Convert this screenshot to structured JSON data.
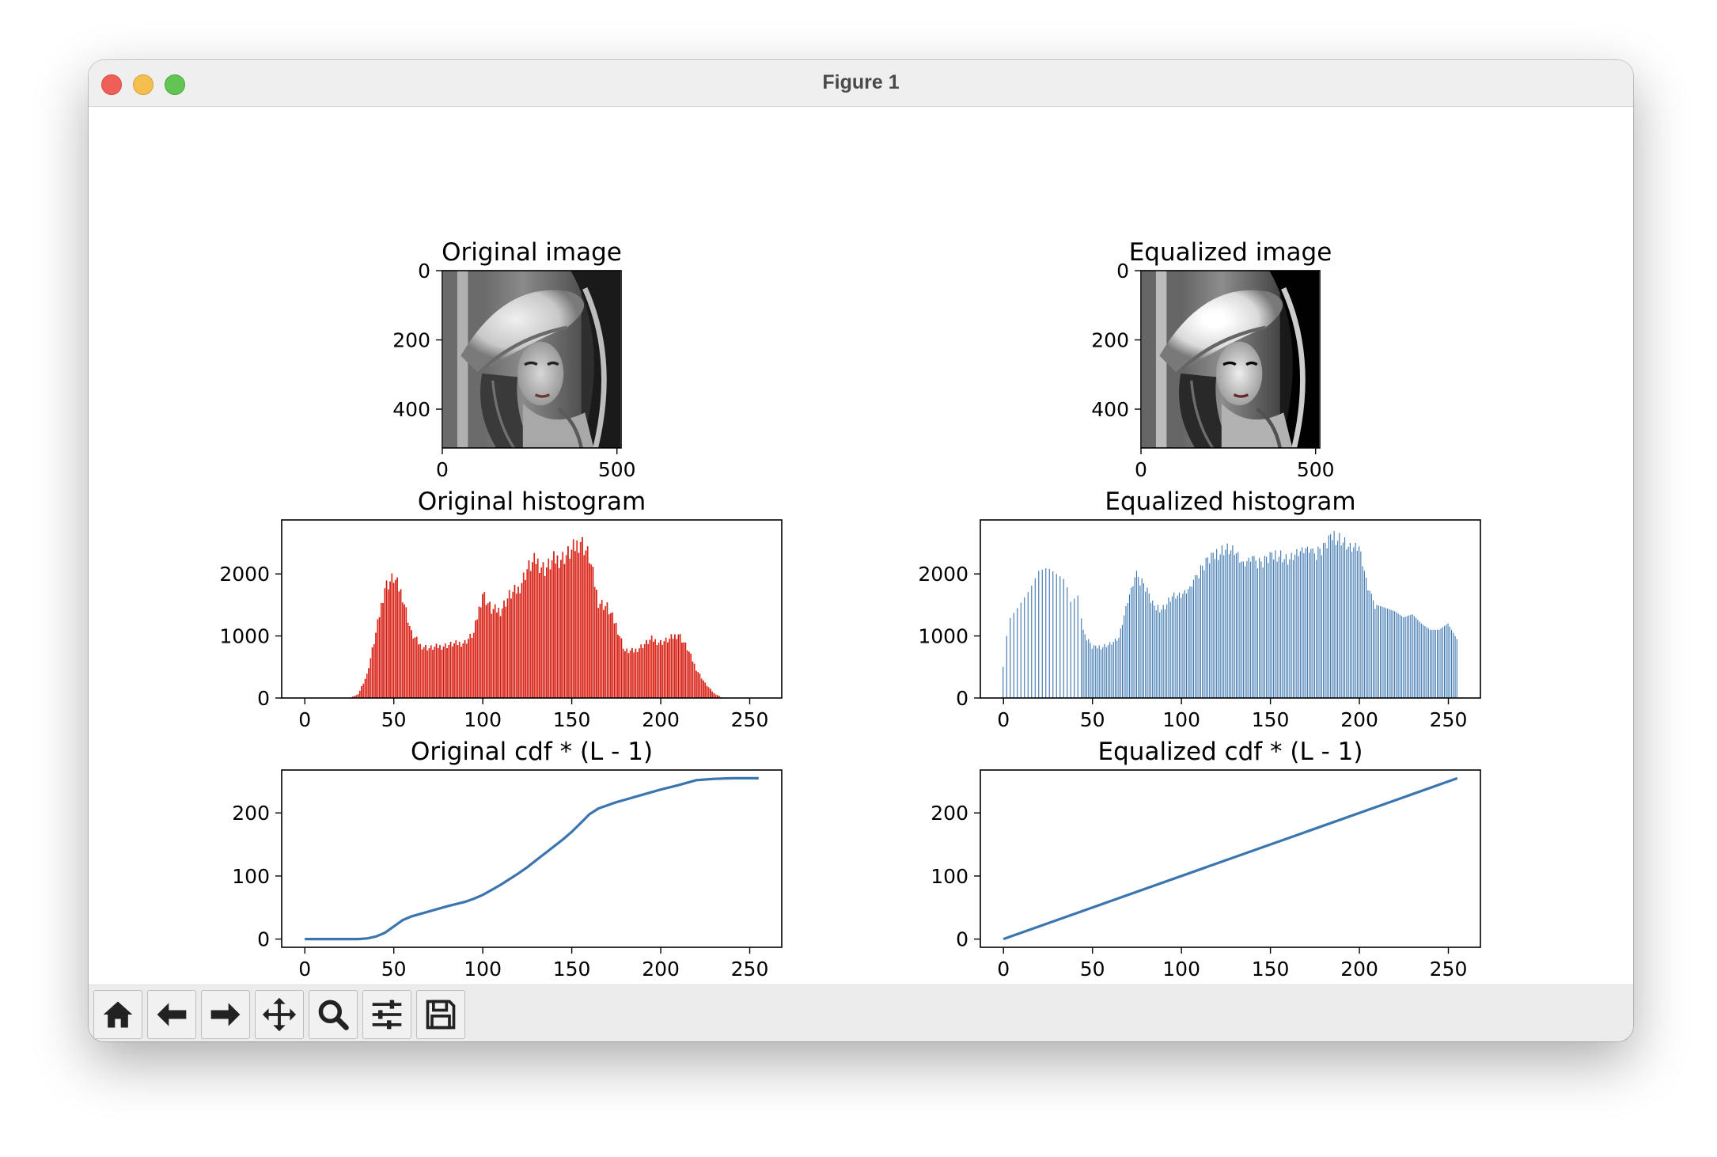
{
  "window": {
    "title": "Figure 1"
  },
  "toolbar": {
    "buttons": [
      {
        "name": "home-button",
        "icon": "home-icon"
      },
      {
        "name": "back-button",
        "icon": "arrow-left-icon"
      },
      {
        "name": "forward-button",
        "icon": "arrow-right-icon"
      },
      {
        "name": "pan-button",
        "icon": "move-icon"
      },
      {
        "name": "zoom-button",
        "icon": "magnifier-icon"
      },
      {
        "name": "configure-subplots-button",
        "icon": "sliders-icon"
      },
      {
        "name": "save-button",
        "icon": "floppy-disk-icon"
      }
    ]
  },
  "colors": {
    "red_hist": "#e8281a",
    "blue": "#3b75af"
  },
  "chart_data": [
    {
      "type": "image",
      "title": "Original image",
      "xticks": [
        0,
        500
      ],
      "yticks": [
        0,
        200,
        400
      ],
      "xlim": [
        0,
        512
      ],
      "ylim": [
        512,
        0
      ]
    },
    {
      "type": "image",
      "title": "Equalized image",
      "xticks": [
        0,
        500
      ],
      "yticks": [
        0,
        200,
        400
      ],
      "xlim": [
        0,
        512
      ],
      "ylim": [
        512,
        0
      ]
    },
    {
      "type": "bar",
      "title": "Original histogram",
      "xlim": [
        -13,
        268
      ],
      "ylim": [
        0,
        2870
      ],
      "xticks": [
        0,
        50,
        100,
        150,
        200,
        250
      ],
      "yticks": [
        0,
        1000,
        2000
      ],
      "peaks": [
        [
          25,
          0
        ],
        [
          30,
          60
        ],
        [
          35,
          400
        ],
        [
          40,
          1100
        ],
        [
          45,
          1900
        ],
        [
          50,
          2050
        ],
        [
          55,
          1750
        ],
        [
          60,
          1100
        ],
        [
          65,
          900
        ],
        [
          70,
          850
        ],
        [
          80,
          900
        ],
        [
          90,
          950
        ],
        [
          95,
          1100
        ],
        [
          100,
          1800
        ],
        [
          105,
          1500
        ],
        [
          110,
          1500
        ],
        [
          115,
          1750
        ],
        [
          120,
          1850
        ],
        [
          125,
          2200
        ],
        [
          130,
          2350
        ],
        [
          135,
          2200
        ],
        [
          140,
          2350
        ],
        [
          145,
          2400
        ],
        [
          150,
          2500
        ],
        [
          155,
          2700
        ],
        [
          160,
          2400
        ],
        [
          165,
          1650
        ],
        [
          170,
          1550
        ],
        [
          175,
          1250
        ],
        [
          180,
          800
        ],
        [
          185,
          800
        ],
        [
          190,
          900
        ],
        [
          195,
          1000
        ],
        [
          200,
          950
        ],
        [
          205,
          1000
        ],
        [
          210,
          1100
        ],
        [
          215,
          850
        ],
        [
          220,
          500
        ],
        [
          225,
          250
        ],
        [
          230,
          80
        ],
        [
          235,
          0
        ]
      ]
    },
    {
      "type": "bar",
      "title": "Equalized histogram",
      "xlim": [
        -13,
        268
      ],
      "ylim": [
        0,
        2870
      ],
      "xticks": [
        0,
        50,
        100,
        150,
        200,
        250
      ],
      "yticks": [
        0,
        1000,
        2000
      ],
      "peaks": [
        [
          0,
          500
        ],
        [
          3,
          1250
        ],
        [
          8,
          1450
        ],
        [
          15,
          1750
        ],
        [
          20,
          2050
        ],
        [
          25,
          2100
        ],
        [
          30,
          2000
        ],
        [
          35,
          1900
        ],
        [
          38,
          1550
        ],
        [
          42,
          1650
        ],
        [
          45,
          1100
        ],
        [
          50,
          850
        ],
        [
          55,
          850
        ],
        [
          60,
          900
        ],
        [
          65,
          1000
        ],
        [
          70,
          1600
        ],
        [
          75,
          2050
        ],
        [
          80,
          1850
        ],
        [
          85,
          1500
        ],
        [
          90,
          1500
        ],
        [
          95,
          1700
        ],
        [
          100,
          1700
        ],
        [
          105,
          1800
        ],
        [
          110,
          2100
        ],
        [
          115,
          2300
        ],
        [
          120,
          2400
        ],
        [
          125,
          2500
        ],
        [
          130,
          2450
        ],
        [
          135,
          2200
        ],
        [
          140,
          2300
        ],
        [
          145,
          2250
        ],
        [
          150,
          2350
        ],
        [
          155,
          2400
        ],
        [
          160,
          2300
        ],
        [
          165,
          2400
        ],
        [
          170,
          2450
        ],
        [
          175,
          2400
        ],
        [
          180,
          2500
        ],
        [
          185,
          2700
        ],
        [
          190,
          2650
        ],
        [
          195,
          2500
        ],
        [
          200,
          2500
        ],
        [
          205,
          1800
        ],
        [
          210,
          1500
        ],
        [
          215,
          1450
        ],
        [
          220,
          1400
        ],
        [
          225,
          1300
        ],
        [
          230,
          1350
        ],
        [
          235,
          1200
        ],
        [
          240,
          1100
        ],
        [
          245,
          1100
        ],
        [
          250,
          1200
        ],
        [
          255,
          950
        ]
      ]
    },
    {
      "type": "line",
      "title": "Original cdf * (L - 1)",
      "xlim": [
        -13,
        268
      ],
      "ylim": [
        -13,
        268
      ],
      "xticks": [
        0,
        50,
        100,
        150,
        200,
        250
      ],
      "yticks": [
        0,
        100,
        200
      ],
      "x": [
        0,
        20,
        30,
        35,
        40,
        45,
        50,
        55,
        60,
        70,
        80,
        90,
        95,
        100,
        105,
        110,
        115,
        120,
        125,
        130,
        135,
        140,
        145,
        150,
        155,
        160,
        165,
        170,
        175,
        180,
        190,
        200,
        210,
        215,
        220,
        230,
        240,
        250,
        255
      ],
      "y": [
        0,
        0,
        0,
        1,
        4,
        10,
        20,
        30,
        36,
        44,
        52,
        59,
        64,
        70,
        78,
        86,
        95,
        104,
        114,
        125,
        136,
        147,
        158,
        170,
        184,
        198,
        207,
        212,
        217,
        221,
        229,
        237,
        244,
        248,
        252,
        254,
        255,
        255,
        255
      ]
    },
    {
      "type": "line",
      "title": "Equalized cdf * (L - 1)",
      "xlim": [
        -13,
        268
      ],
      "ylim": [
        -13,
        268
      ],
      "xticks": [
        0,
        50,
        100,
        150,
        200,
        250
      ],
      "yticks": [
        0,
        100,
        200
      ],
      "x": [
        0,
        255
      ],
      "y": [
        0,
        255
      ]
    }
  ]
}
